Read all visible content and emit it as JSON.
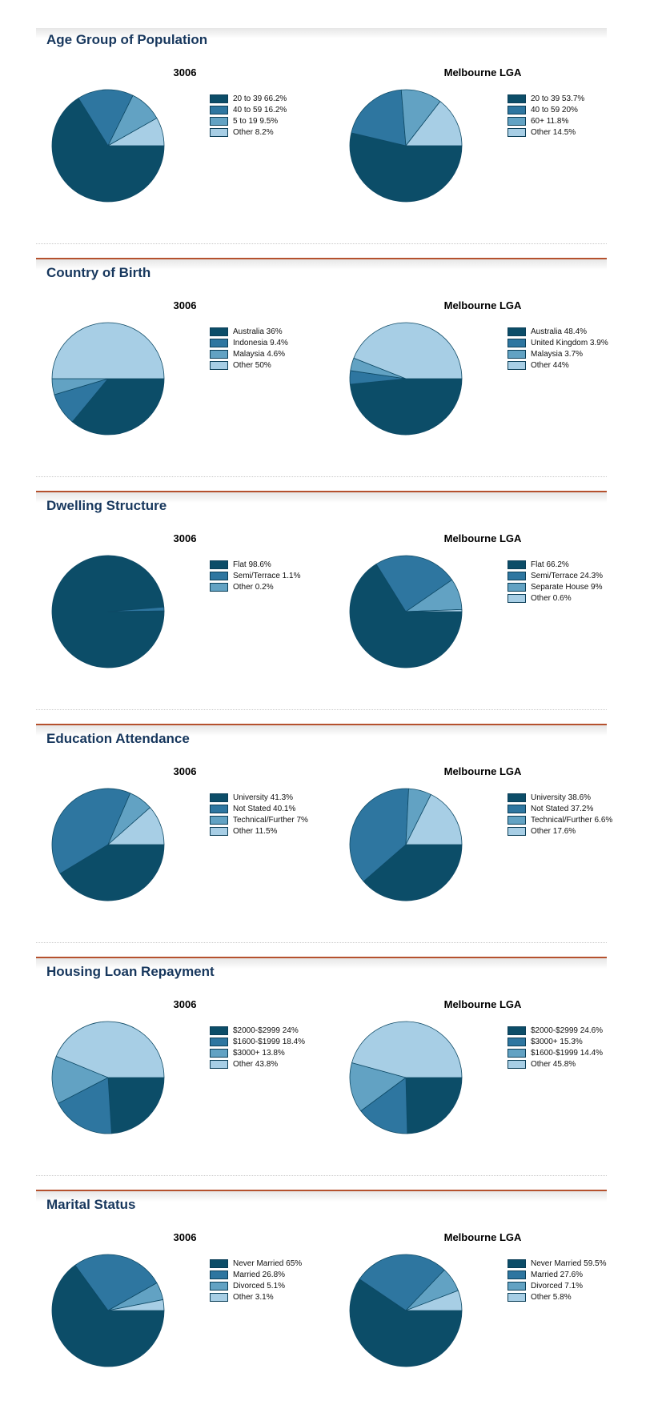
{
  "page": {
    "name": "Demographics comparison report",
    "accent_rule_color": "#B5512E",
    "section_title_color": "#17375D"
  },
  "palette": [
    "#0C4D68",
    "#2E76A0",
    "#62A2C3",
    "#A7CEE5"
  ],
  "chart_data": [
    {
      "section": "Age Group of Population",
      "charts": [
        {
          "type": "pie",
          "title": "3006",
          "legend_position": "right",
          "labels": [
            "20 to 39",
            "40 to 59",
            "5 to 19",
            "Other"
          ],
          "values": [
            66.2,
            16.2,
            9.5,
            8.2
          ],
          "legend": [
            "20 to 39 66.2%",
            "40 to 59 16.2%",
            "5 to 19 9.5%",
            "Other 8.2%"
          ]
        },
        {
          "type": "pie",
          "title": "Melbourne LGA",
          "legend_position": "right",
          "labels": [
            "20 to 39",
            "40 to 59",
            "60+",
            "Other"
          ],
          "values": [
            53.7,
            20,
            11.8,
            14.5
          ],
          "legend": [
            "20 to 39 53.7%",
            "40 to 59 20%",
            "60+ 11.8%",
            "Other 14.5%"
          ]
        }
      ]
    },
    {
      "section": "Country of Birth",
      "charts": [
        {
          "type": "pie",
          "title": "3006",
          "legend_position": "right",
          "labels": [
            "Australia",
            "Indonesia",
            "Malaysia",
            "Other"
          ],
          "values": [
            36,
            9.4,
            4.6,
            50
          ],
          "legend": [
            "Australia 36%",
            "Indonesia 9.4%",
            "Malaysia 4.6%",
            "Other 50%"
          ]
        },
        {
          "type": "pie",
          "title": "Melbourne LGA",
          "legend_position": "right",
          "labels": [
            "Australia",
            "United Kingdom",
            "Malaysia",
            "Other"
          ],
          "values": [
            48.4,
            3.9,
            3.7,
            44
          ],
          "legend": [
            "Australia 48.4%",
            "United Kingdom 3.9%",
            "Malaysia 3.7%",
            "Other 44%"
          ]
        }
      ]
    },
    {
      "section": "Dwelling Structure",
      "charts": [
        {
          "type": "pie",
          "title": "3006",
          "legend_position": "right",
          "labels": [
            "Flat",
            "Semi/Terrace",
            "Other"
          ],
          "values": [
            98.6,
            1.1,
            0.2
          ],
          "legend": [
            "Flat 98.6%",
            "Semi/Terrace 1.1%",
            "Other 0.2%"
          ]
        },
        {
          "type": "pie",
          "title": "Melbourne LGA",
          "legend_position": "right",
          "labels": [
            "Flat",
            "Semi/Terrace",
            "Separate House",
            "Other"
          ],
          "values": [
            66.2,
            24.3,
            9,
            0.6
          ],
          "legend": [
            "Flat 66.2%",
            "Semi/Terrace 24.3%",
            "Separate House 9%",
            "Other 0.6%"
          ]
        }
      ]
    },
    {
      "section": "Education Attendance",
      "charts": [
        {
          "type": "pie",
          "title": "3006",
          "legend_position": "right",
          "labels": [
            "University",
            "Not Stated",
            "Technical/Further",
            "Other"
          ],
          "values": [
            41.3,
            40.1,
            7,
            11.5
          ],
          "legend": [
            "University 41.3%",
            "Not Stated 40.1%",
            "Technical/Further 7%",
            "Other 11.5%"
          ]
        },
        {
          "type": "pie",
          "title": "Melbourne LGA",
          "legend_position": "right",
          "labels": [
            "University",
            "Not Stated",
            "Technical/Further",
            "Other"
          ],
          "values": [
            38.6,
            37.2,
            6.6,
            17.6
          ],
          "legend": [
            "University 38.6%",
            "Not Stated 37.2%",
            "Technical/Further 6.6%",
            "Other 17.6%"
          ]
        }
      ]
    },
    {
      "section": "Housing Loan Repayment",
      "charts": [
        {
          "type": "pie",
          "title": "3006",
          "legend_position": "right",
          "labels": [
            "$2000-$2999",
            "$1600-$1999",
            "$3000+",
            "Other"
          ],
          "values": [
            24,
            18.4,
            13.8,
            43.8
          ],
          "legend": [
            "$2000-$2999 24%",
            "$1600-$1999 18.4%",
            "$3000+ 13.8%",
            "Other 43.8%"
          ]
        },
        {
          "type": "pie",
          "title": "Melbourne LGA",
          "legend_position": "right",
          "labels": [
            "$2000-$2999",
            "$3000+",
            "$1600-$1999",
            "Other"
          ],
          "values": [
            24.6,
            15.3,
            14.4,
            45.8
          ],
          "legend": [
            "$2000-$2999 24.6%",
            "$3000+ 15.3%",
            "$1600-$1999 14.4%",
            "Other 45.8%"
          ]
        }
      ]
    },
    {
      "section": "Marital Status",
      "charts": [
        {
          "type": "pie",
          "title": "3006",
          "legend_position": "right",
          "labels": [
            "Never Married",
            "Married",
            "Divorced",
            "Other"
          ],
          "values": [
            65,
            26.8,
            5.1,
            3.1
          ],
          "legend": [
            "Never Married 65%",
            "Married 26.8%",
            "Divorced 5.1%",
            "Other 3.1%"
          ]
        },
        {
          "type": "pie",
          "title": "Melbourne LGA",
          "legend_position": "right",
          "labels": [
            "Never Married",
            "Married",
            "Divorced",
            "Other"
          ],
          "values": [
            59.5,
            27.6,
            7.1,
            5.8
          ],
          "legend": [
            "Never Married 59.5%",
            "Married 27.6%",
            "Divorced 7.1%",
            "Other 5.8%"
          ]
        }
      ]
    }
  ]
}
